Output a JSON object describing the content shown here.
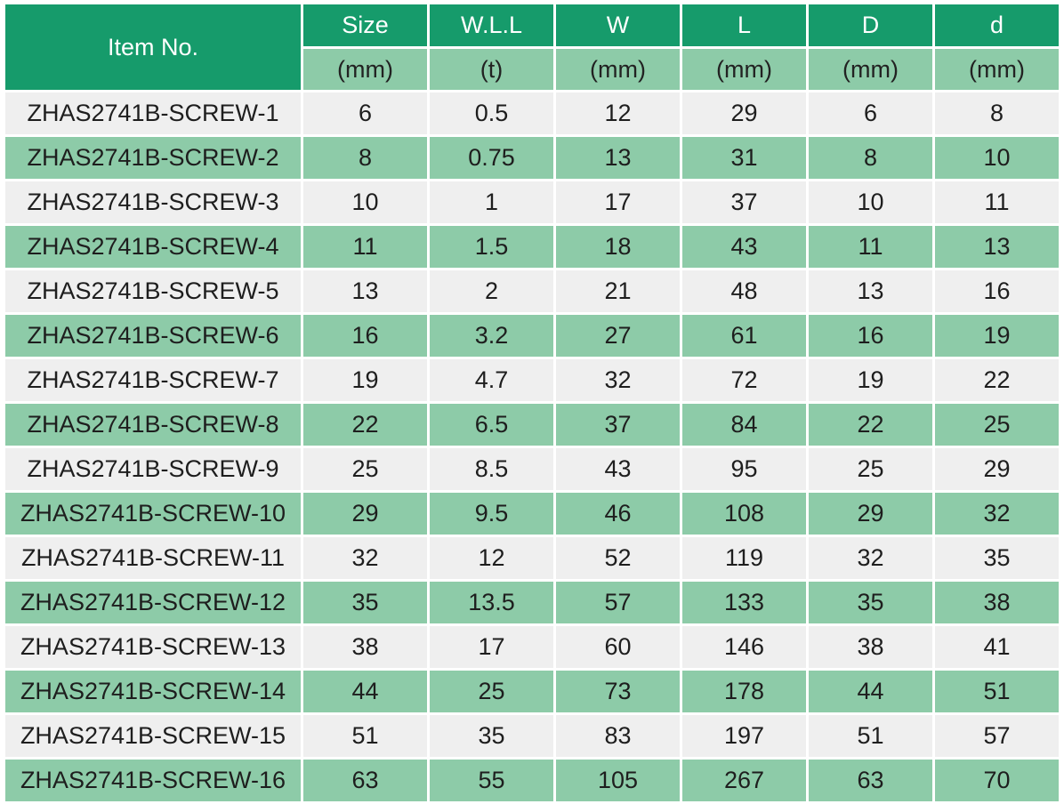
{
  "colors": {
    "header": "#169b6b",
    "accent_row": "#8dcba8",
    "light_row": "#efefef"
  },
  "header": {
    "item_no": "Item No.",
    "columns": [
      {
        "name": "Size",
        "unit": "(mm)"
      },
      {
        "name": "W.L.L",
        "unit": "(t)"
      },
      {
        "name": "W",
        "unit": "(mm)"
      },
      {
        "name": "L",
        "unit": "(mm)"
      },
      {
        "name": "D",
        "unit": "(mm)"
      },
      {
        "name": "d",
        "unit": "(mm)"
      }
    ]
  },
  "rows": [
    {
      "item": "ZHAS2741B-SCREW-1",
      "size": "6",
      "wll": "0.5",
      "w": "12",
      "l": "29",
      "D": "6",
      "d": "8"
    },
    {
      "item": "ZHAS2741B-SCREW-2",
      "size": "8",
      "wll": "0.75",
      "w": "13",
      "l": "31",
      "D": "8",
      "d": "10"
    },
    {
      "item": "ZHAS2741B-SCREW-3",
      "size": "10",
      "wll": "1",
      "w": "17",
      "l": "37",
      "D": "10",
      "d": "11"
    },
    {
      "item": "ZHAS2741B-SCREW-4",
      "size": "11",
      "wll": "1.5",
      "w": "18",
      "l": "43",
      "D": "11",
      "d": "13"
    },
    {
      "item": "ZHAS2741B-SCREW-5",
      "size": "13",
      "wll": "2",
      "w": "21",
      "l": "48",
      "D": "13",
      "d": "16"
    },
    {
      "item": "ZHAS2741B-SCREW-6",
      "size": "16",
      "wll": "3.2",
      "w": "27",
      "l": "61",
      "D": "16",
      "d": "19"
    },
    {
      "item": "ZHAS2741B-SCREW-7",
      "size": "19",
      "wll": "4.7",
      "w": "32",
      "l": "72",
      "D": "19",
      "d": "22"
    },
    {
      "item": "ZHAS2741B-SCREW-8",
      "size": "22",
      "wll": "6.5",
      "w": "37",
      "l": "84",
      "D": "22",
      "d": "25"
    },
    {
      "item": "ZHAS2741B-SCREW-9",
      "size": "25",
      "wll": "8.5",
      "w": "43",
      "l": "95",
      "D": "25",
      "d": "29"
    },
    {
      "item": "ZHAS2741B-SCREW-10",
      "size": "29",
      "wll": "9.5",
      "w": "46",
      "l": "108",
      "D": "29",
      "d": "32"
    },
    {
      "item": "ZHAS2741B-SCREW-11",
      "size": "32",
      "wll": "12",
      "w": "52",
      "l": "119",
      "D": "32",
      "d": "35"
    },
    {
      "item": "ZHAS2741B-SCREW-12",
      "size": "35",
      "wll": "13.5",
      "w": "57",
      "l": "133",
      "D": "35",
      "d": "38"
    },
    {
      "item": "ZHAS2741B-SCREW-13",
      "size": "38",
      "wll": "17",
      "w": "60",
      "l": "146",
      "D": "38",
      "d": "41"
    },
    {
      "item": "ZHAS2741B-SCREW-14",
      "size": "44",
      "wll": "25",
      "w": "73",
      "l": "178",
      "D": "44",
      "d": "51"
    },
    {
      "item": "ZHAS2741B-SCREW-15",
      "size": "51",
      "wll": "35",
      "w": "83",
      "l": "197",
      "D": "51",
      "d": "57"
    },
    {
      "item": "ZHAS2741B-SCREW-16",
      "size": "63",
      "wll": "55",
      "w": "105",
      "l": "267",
      "D": "63",
      "d": "70"
    }
  ]
}
